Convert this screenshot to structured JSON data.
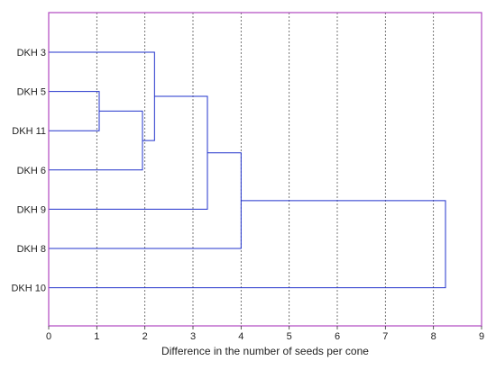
{
  "chart_data": {
    "type": "dendrogram",
    "title": "",
    "xlabel": "Difference in the number of seeds per cone",
    "ylabel": "",
    "xlim": [
      0,
      9
    ],
    "x_ticks": [
      0,
      1,
      2,
      3,
      4,
      5,
      6,
      7,
      8,
      9
    ],
    "grid": "vertical dashed",
    "leaves": [
      "DKH 3",
      "DKH 5",
      "DKH 11",
      "DKH 6",
      "DKH 9",
      "DKH 8",
      "DKH 10"
    ],
    "merges": [
      {
        "id": "c1",
        "children": [
          "DKH 5",
          "DKH 11"
        ],
        "height": 1.05
      },
      {
        "id": "c2",
        "children": [
          "c1",
          "DKH 6"
        ],
        "height": 1.95
      },
      {
        "id": "c3",
        "children": [
          "DKH 3",
          "c2"
        ],
        "height": 2.2
      },
      {
        "id": "c4",
        "children": [
          "c3",
          "DKH 9"
        ],
        "height": 3.3
      },
      {
        "id": "c5",
        "children": [
          "c4",
          "DKH 8"
        ],
        "height": 4.0
      },
      {
        "id": "c6",
        "children": [
          "c5",
          "DKH 10"
        ],
        "height": 8.25
      }
    ],
    "colors": {
      "frame": "#b048c0",
      "links": "#2233cc",
      "grid": "#555555"
    }
  }
}
